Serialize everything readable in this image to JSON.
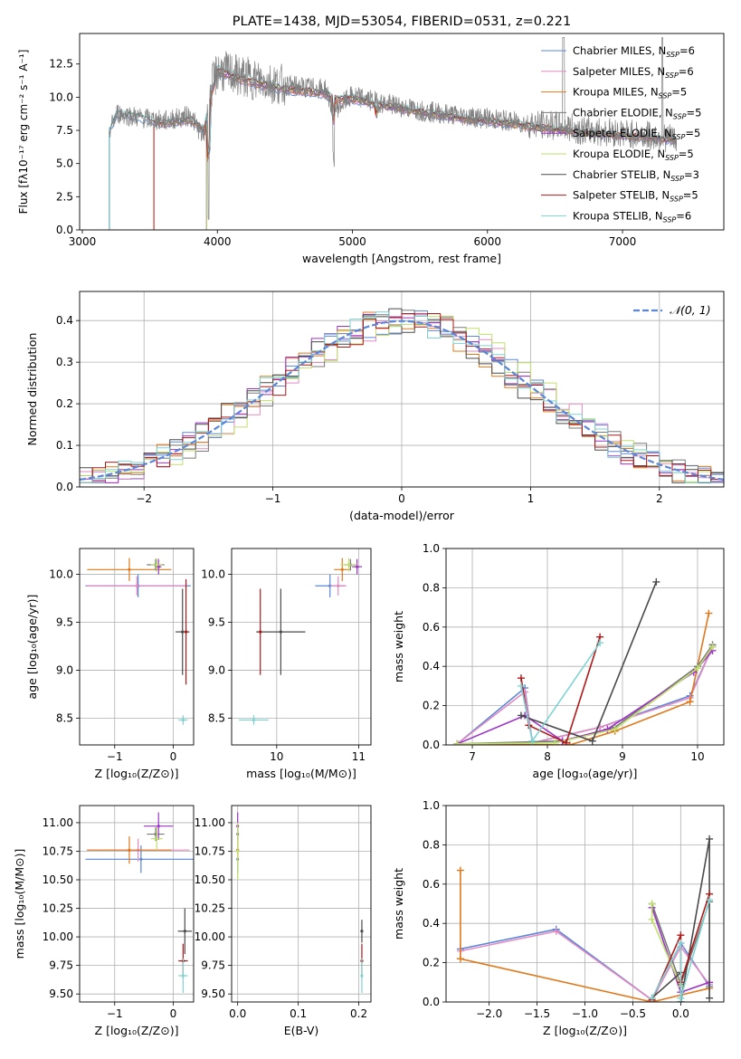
{
  "colors": {
    "chabrier_miles": "#5a87d8",
    "salpeter_miles": "#e38ac1",
    "kroupa_miles": "#e0781c",
    "chabrier_elodie": "#7a7a7a",
    "salpeter_elodie": "#9b34c6",
    "kroupa_elodie": "#bfe06a",
    "chabrier_stelib": "#4a4a4a",
    "salpeter_stelib": "#b01818",
    "kroupa_stelib": "#7fd3d3",
    "normal": "#5a87d8",
    "grid": "#b0b0b0"
  },
  "chart_data": [
    {
      "type": "line",
      "title": "PLATE=1438, MJD=53054, FIBERID=0531, z=0.221",
      "xlabel": "wavelength [Angstrom, rest frame]",
      "ylabel": "Flux [fλ10⁻¹⁷ erg cm⁻² s⁻¹ A⁻¹]",
      "xlim": [
        2980,
        7750
      ],
      "ylim": [
        0,
        14.8
      ],
      "xticks": [
        3000,
        4000,
        5000,
        6000,
        7000
      ],
      "yticks": [
        0.0,
        2.5,
        5.0,
        7.5,
        10.0,
        12.5
      ],
      "legend_position": "top-right",
      "legend": [
        {
          "label": "Chabrier MILES, N",
          "sub": "SSP",
          "tail": "=6",
          "color": "#5a87d8"
        },
        {
          "label": "Salpeter MILES, N",
          "sub": "SSP",
          "tail": "=6",
          "color": "#e38ac1"
        },
        {
          "label": "Kroupa MILES, N",
          "sub": "SSP",
          "tail": "=5",
          "color": "#e0781c"
        },
        {
          "label": "Chabrier ELODIE, N",
          "sub": "SSP",
          "tail": "=5",
          "color": "#7a7a7a"
        },
        {
          "label": "Salpeter ELODIE, N",
          "sub": "SSP",
          "tail": "=5",
          "color": "#9b34c6"
        },
        {
          "label": "Kroupa ELODIE, N",
          "sub": "SSP",
          "tail": "=5",
          "color": "#bfe06a"
        },
        {
          "label": "Chabrier STELIB, N",
          "sub": "SSP",
          "tail": "=3",
          "color": "#4a4a4a"
        },
        {
          "label": "Salpeter STELIB, N",
          "sub": "SSP",
          "tail": "=5",
          "color": "#b01818"
        },
        {
          "label": "Kroupa STELIB, N",
          "sub": "SSP",
          "tail": "=6",
          "color": "#7fd3d3"
        }
      ],
      "data_spectrum": {
        "x": [
          3200,
          3260,
          3400,
          3600,
          3800,
          3900,
          3950,
          4000,
          4100,
          4200,
          4340,
          4500,
          4800,
          4861,
          5000,
          5200,
          5500,
          5800,
          6000,
          6300,
          6563,
          6700,
          7000,
          7300,
          7400
        ],
        "y": [
          7.5,
          8.8,
          8.5,
          8.2,
          8.6,
          7.0,
          10.5,
          12.0,
          11.8,
          11.5,
          11.2,
          10.9,
          10.6,
          9.0,
          10.1,
          9.6,
          9.0,
          8.6,
          8.4,
          8.0,
          7.8,
          7.5,
          7.3,
          7.0,
          6.8
        ]
      },
      "model_spectrum": {
        "x": [
          3200,
          3260,
          3400,
          3600,
          3800,
          3900,
          3950,
          4000,
          4100,
          4200,
          4340,
          4500,
          4800,
          4861,
          5000,
          5200,
          5500,
          5800,
          6000,
          6300,
          6563,
          6700,
          7000,
          7300,
          7400
        ],
        "y": [
          7.5,
          8.8,
          8.5,
          8.0,
          8.3,
          7.5,
          10.0,
          12.0,
          11.6,
          11.3,
          10.9,
          10.6,
          10.3,
          9.8,
          9.9,
          9.4,
          8.9,
          8.4,
          8.2,
          7.8,
          7.5,
          7.3,
          7.1,
          6.8,
          6.7
        ]
      }
    },
    {
      "type": "line",
      "xlabel": "(data-model)/error",
      "ylabel": "Normed distribution",
      "xlim": [
        -2.5,
        2.5
      ],
      "ylim": [
        0,
        0.47
      ],
      "xticks": [
        -2,
        -1,
        0,
        1,
        2
      ],
      "yticks": [
        0.0,
        0.1,
        0.2,
        0.3,
        0.4
      ],
      "legend": [
        {
          "label": "𝒩(0, 1)",
          "style": "dashed",
          "color": "#5a87d8"
        }
      ],
      "legend_position": "top-right",
      "histogram_bin_width": 0.1,
      "histograms": [
        {
          "color": "#5a87d8",
          "shift": 0.0
        },
        {
          "color": "#e38ac1",
          "shift": 0.012
        },
        {
          "color": "#e0781c",
          "shift": -0.01
        },
        {
          "color": "#7a7a7a",
          "shift": 0.008
        },
        {
          "color": "#9b34c6",
          "shift": -0.006
        },
        {
          "color": "#bfe06a",
          "shift": 0.015
        },
        {
          "color": "#4a4a4a",
          "shift": -0.012
        },
        {
          "color": "#b01818",
          "shift": 0.005
        },
        {
          "color": "#7fd3d3",
          "shift": -0.004
        }
      ]
    },
    {
      "type": "scatter",
      "xlabel": "Z [log₁₀(Z/Z⊙)]",
      "ylabel": "age  [log₁₀(age/yr)]",
      "xlim": [
        -1.6,
        0.35
      ],
      "ylim": [
        8.22,
        10.27
      ],
      "xticks": [
        -1,
        0
      ],
      "yticks": [
        8.5,
        9.0,
        9.5,
        10.0
      ],
      "points": [
        {
          "x": -0.6,
          "y": 9.88,
          "xerr": 0.9,
          "yerr": 0.12,
          "color": "#5a87d8"
        },
        {
          "x": -0.62,
          "y": 9.88,
          "xerr": 0.86,
          "yerr": 0.1,
          "color": "#e38ac1"
        },
        {
          "x": -0.75,
          "y": 10.05,
          "xerr": 0.72,
          "yerr": 0.12,
          "color": "#e0781c"
        },
        {
          "x": -0.3,
          "y": 10.1,
          "xerr": 0.15,
          "yerr": 0.06,
          "color": "#7a7a7a"
        },
        {
          "x": -0.25,
          "y": 10.08,
          "xerr": 0.05,
          "yerr": 0.08,
          "color": "#9b34c6"
        },
        {
          "x": -0.28,
          "y": 10.1,
          "xerr": 0.1,
          "yerr": 0.07,
          "color": "#bfe06a"
        },
        {
          "x": 0.16,
          "y": 9.4,
          "xerr": 0.12,
          "yerr": 0.45,
          "color": "#4a4a4a"
        },
        {
          "x": 0.22,
          "y": 9.4,
          "xerr": 0.03,
          "yerr": 0.55,
          "color": "#b01818"
        },
        {
          "x": 0.17,
          "y": 8.48,
          "xerr": 0.08,
          "yerr": 0.05,
          "color": "#7fd3d3"
        }
      ]
    },
    {
      "type": "scatter",
      "xlabel": "mass [log₁₀(M/M⊙)]",
      "ylabel": "",
      "xlim": [
        9.45,
        11.15
      ],
      "ylim": [
        8.22,
        10.27
      ],
      "xticks": [
        10,
        11
      ],
      "yticks": [
        8.5,
        9.0,
        9.5,
        10.0
      ],
      "points": [
        {
          "x": 10.65,
          "y": 9.88,
          "xerr": 0.18,
          "yerr": 0.12,
          "color": "#5a87d8"
        },
        {
          "x": 10.75,
          "y": 9.88,
          "xerr": 0.1,
          "yerr": 0.1,
          "color": "#e38ac1"
        },
        {
          "x": 10.8,
          "y": 10.05,
          "xerr": 0.1,
          "yerr": 0.12,
          "color": "#e0781c"
        },
        {
          "x": 10.9,
          "y": 10.1,
          "xerr": 0.08,
          "yerr": 0.06,
          "color": "#7a7a7a"
        },
        {
          "x": 10.98,
          "y": 10.08,
          "xerr": 0.06,
          "yerr": 0.08,
          "color": "#9b34c6"
        },
        {
          "x": 10.88,
          "y": 10.1,
          "xerr": 0.1,
          "yerr": 0.07,
          "color": "#bfe06a"
        },
        {
          "x": 10.05,
          "y": 9.4,
          "xerr": 0.3,
          "yerr": 0.45,
          "color": "#4a4a4a"
        },
        {
          "x": 9.8,
          "y": 9.4,
          "xerr": 0.02,
          "yerr": 0.45,
          "color": "#b01818"
        },
        {
          "x": 9.72,
          "y": 8.48,
          "xerr": 0.18,
          "yerr": 0.05,
          "color": "#7fd3d3"
        }
      ]
    },
    {
      "type": "line",
      "xlabel": "age  [log₁₀(age/yr)]",
      "ylabel": "mass weight",
      "xlim": [
        6.65,
        10.35
      ],
      "ylim": [
        0,
        1.0
      ],
      "xticks": [
        7,
        8,
        9,
        10
      ],
      "yticks": [
        0.0,
        0.2,
        0.4,
        0.6,
        0.8,
        1.0
      ],
      "series": [
        {
          "color": "#5a87d8",
          "x": [
            6.8,
            7.7,
            7.8,
            8.7,
            9.9,
            10.2
          ],
          "y": [
            0.005,
            0.29,
            0.01,
            0.09,
            0.25,
            0.5
          ]
        },
        {
          "color": "#e38ac1",
          "x": [
            6.8,
            7.7,
            7.8,
            8.7,
            9.9,
            10.2
          ],
          "y": [
            0.005,
            0.27,
            0.01,
            0.09,
            0.24,
            0.5
          ]
        },
        {
          "color": "#e0781c",
          "x": [
            6.8,
            8.3,
            8.9,
            9.9,
            10.15
          ],
          "y": [
            0.005,
            0.0,
            0.07,
            0.22,
            0.67
          ]
        },
        {
          "color": "#7a7a7a",
          "x": [
            6.8,
            8.2,
            8.9,
            10.0,
            10.2
          ],
          "y": [
            0.005,
            0.02,
            0.09,
            0.4,
            0.51
          ]
        },
        {
          "color": "#9b34c6",
          "x": [
            6.8,
            7.7,
            8.2,
            8.8,
            9.95,
            10.2
          ],
          "y": [
            0.005,
            0.15,
            0.02,
            0.08,
            0.37,
            0.48
          ]
        },
        {
          "color": "#bfe06a",
          "x": [
            6.8,
            8.1,
            8.9,
            10.0,
            10.2
          ],
          "y": [
            0.005,
            0.01,
            0.08,
            0.39,
            0.5
          ]
        },
        {
          "color": "#4a4a4a",
          "x": [
            7.65,
            8.6,
            9.45
          ],
          "y": [
            0.15,
            0.02,
            0.83
          ]
        },
        {
          "color": "#b01818",
          "x": [
            7.65,
            7.75,
            8.25,
            8.7
          ],
          "y": [
            0.34,
            0.1,
            0.01,
            0.55
          ]
        },
        {
          "color": "#7fd3d3",
          "x": [
            7.65,
            7.8,
            8.7
          ],
          "y": [
            0.3,
            0.02,
            0.52
          ]
        }
      ]
    },
    {
      "type": "scatter",
      "xlabel": "Z [log₁₀(Z/Z⊙)]",
      "ylabel": "mass [log₁₀(M/M⊙)]",
      "xlim": [
        -1.6,
        0.35
      ],
      "ylim": [
        9.43,
        11.15
      ],
      "xticks": [
        -1,
        0
      ],
      "yticks": [
        9.5,
        9.75,
        10.0,
        10.25,
        10.5,
        10.75,
        11.0
      ],
      "points": [
        {
          "x": -0.55,
          "y": 10.68,
          "xerr": 0.95,
          "yerr": 0.12,
          "color": "#5a87d8"
        },
        {
          "x": -0.6,
          "y": 10.76,
          "xerr": 0.88,
          "yerr": 0.1,
          "color": "#e38ac1"
        },
        {
          "x": -0.75,
          "y": 10.76,
          "xerr": 0.72,
          "yerr": 0.12,
          "color": "#e0781c"
        },
        {
          "x": -0.3,
          "y": 10.9,
          "xerr": 0.15,
          "yerr": 0.06,
          "color": "#7a7a7a"
        },
        {
          "x": -0.25,
          "y": 10.97,
          "xerr": 0.25,
          "yerr": 0.12,
          "color": "#9b34c6"
        },
        {
          "x": -0.28,
          "y": 10.86,
          "xerr": 0.1,
          "yerr": 0.1,
          "color": "#bfe06a"
        },
        {
          "x": 0.2,
          "y": 10.05,
          "xerr": 0.12,
          "yerr": 0.2,
          "color": "#4a4a4a"
        },
        {
          "x": 0.17,
          "y": 9.79,
          "xerr": 0.08,
          "yerr": 0.15,
          "color": "#b01818"
        },
        {
          "x": 0.17,
          "y": 9.66,
          "xerr": 0.08,
          "yerr": 0.15,
          "color": "#7fd3d3"
        }
      ]
    },
    {
      "type": "scatter",
      "xlabel": "E(B-V)",
      "ylabel": "",
      "xlim": [
        -0.01,
        0.22
      ],
      "ylim": [
        9.43,
        11.15
      ],
      "xticks": [
        0.0,
        0.1,
        0.2
      ],
      "yticks": [
        9.5,
        9.75,
        10.0,
        10.25,
        10.5,
        10.75,
        11.0
      ],
      "points": [
        {
          "x": 0.0,
          "y": 10.68,
          "xerr": 0,
          "yerr": 0.12,
          "color": "#5a87d8"
        },
        {
          "x": 0.0,
          "y": 10.76,
          "xerr": 0,
          "yerr": 0.1,
          "color": "#e38ac1"
        },
        {
          "x": 0.0,
          "y": 10.76,
          "xerr": 0,
          "yerr": 0.12,
          "color": "#e0781c"
        },
        {
          "x": 0.0,
          "y": 10.9,
          "xerr": 0,
          "yerr": 0.06,
          "color": "#7a7a7a"
        },
        {
          "x": 0.0,
          "y": 10.97,
          "xerr": 0,
          "yerr": 0.12,
          "color": "#9b34c6"
        },
        {
          "x": 0.0,
          "y": 10.75,
          "xerr": 0,
          "yerr": 0.25,
          "color": "#bfe06a"
        },
        {
          "x": 0.205,
          "y": 10.05,
          "xerr": 0,
          "yerr": 0.1,
          "color": "#4a4a4a"
        },
        {
          "x": 0.205,
          "y": 9.79,
          "xerr": 0,
          "yerr": 0.15,
          "color": "#b01818"
        },
        {
          "x": 0.205,
          "y": 9.66,
          "xerr": 0,
          "yerr": 0.15,
          "color": "#7fd3d3"
        }
      ]
    },
    {
      "type": "line",
      "xlabel": "Z [log₁₀(Z/Z⊙)]",
      "ylabel": "mass weight",
      "xlim": [
        -2.45,
        0.45
      ],
      "ylim": [
        0,
        1.0
      ],
      "xticks": [
        -2.0,
        -1.5,
        -1.0,
        -0.5,
        0.0
      ],
      "yticks": [
        0.0,
        0.2,
        0.4,
        0.6,
        0.8,
        1.0
      ],
      "series": [
        {
          "color": "#5a87d8",
          "x": [
            -2.3,
            -1.3,
            -0.3,
            0.0,
            0.3
          ],
          "y": [
            0.27,
            0.37,
            0.01,
            0.3,
            0.08
          ]
        },
        {
          "color": "#e38ac1",
          "x": [
            -2.3,
            -1.3,
            -0.3,
            0.0,
            0.3
          ],
          "y": [
            0.26,
            0.36,
            0.01,
            0.28,
            0.09
          ]
        },
        {
          "color": "#e0781c",
          "x": [
            -2.3,
            -2.3,
            -0.3,
            0.3
          ],
          "y": [
            0.67,
            0.22,
            0.0,
            0.07
          ]
        },
        {
          "color": "#7a7a7a",
          "x": [
            -0.3,
            0.0,
            0.3
          ],
          "y": [
            0.5,
            0.09,
            0.51
          ]
        },
        {
          "color": "#9b34c6",
          "x": [
            -0.3,
            0.0,
            0.3
          ],
          "y": [
            0.48,
            0.05,
            0.1
          ]
        },
        {
          "color": "#bfe06a",
          "x": [
            -0.3,
            -0.3,
            0.0
          ],
          "y": [
            0.5,
            0.42,
            0.08
          ]
        },
        {
          "color": "#4a4a4a",
          "x": [
            -0.3,
            0.0,
            0.0,
            0.3,
            0.3
          ],
          "y": [
            0.02,
            0.15,
            0.0,
            0.83,
            0.02
          ]
        },
        {
          "color": "#b01818",
          "x": [
            -0.3,
            0.0,
            0.0,
            0.3
          ],
          "y": [
            0.01,
            0.34,
            0.1,
            0.55
          ]
        },
        {
          "color": "#7fd3d3",
          "x": [
            -0.3,
            0.0,
            0.0,
            0.3
          ],
          "y": [
            0.02,
            0.3,
            0.02,
            0.52
          ]
        }
      ]
    }
  ]
}
